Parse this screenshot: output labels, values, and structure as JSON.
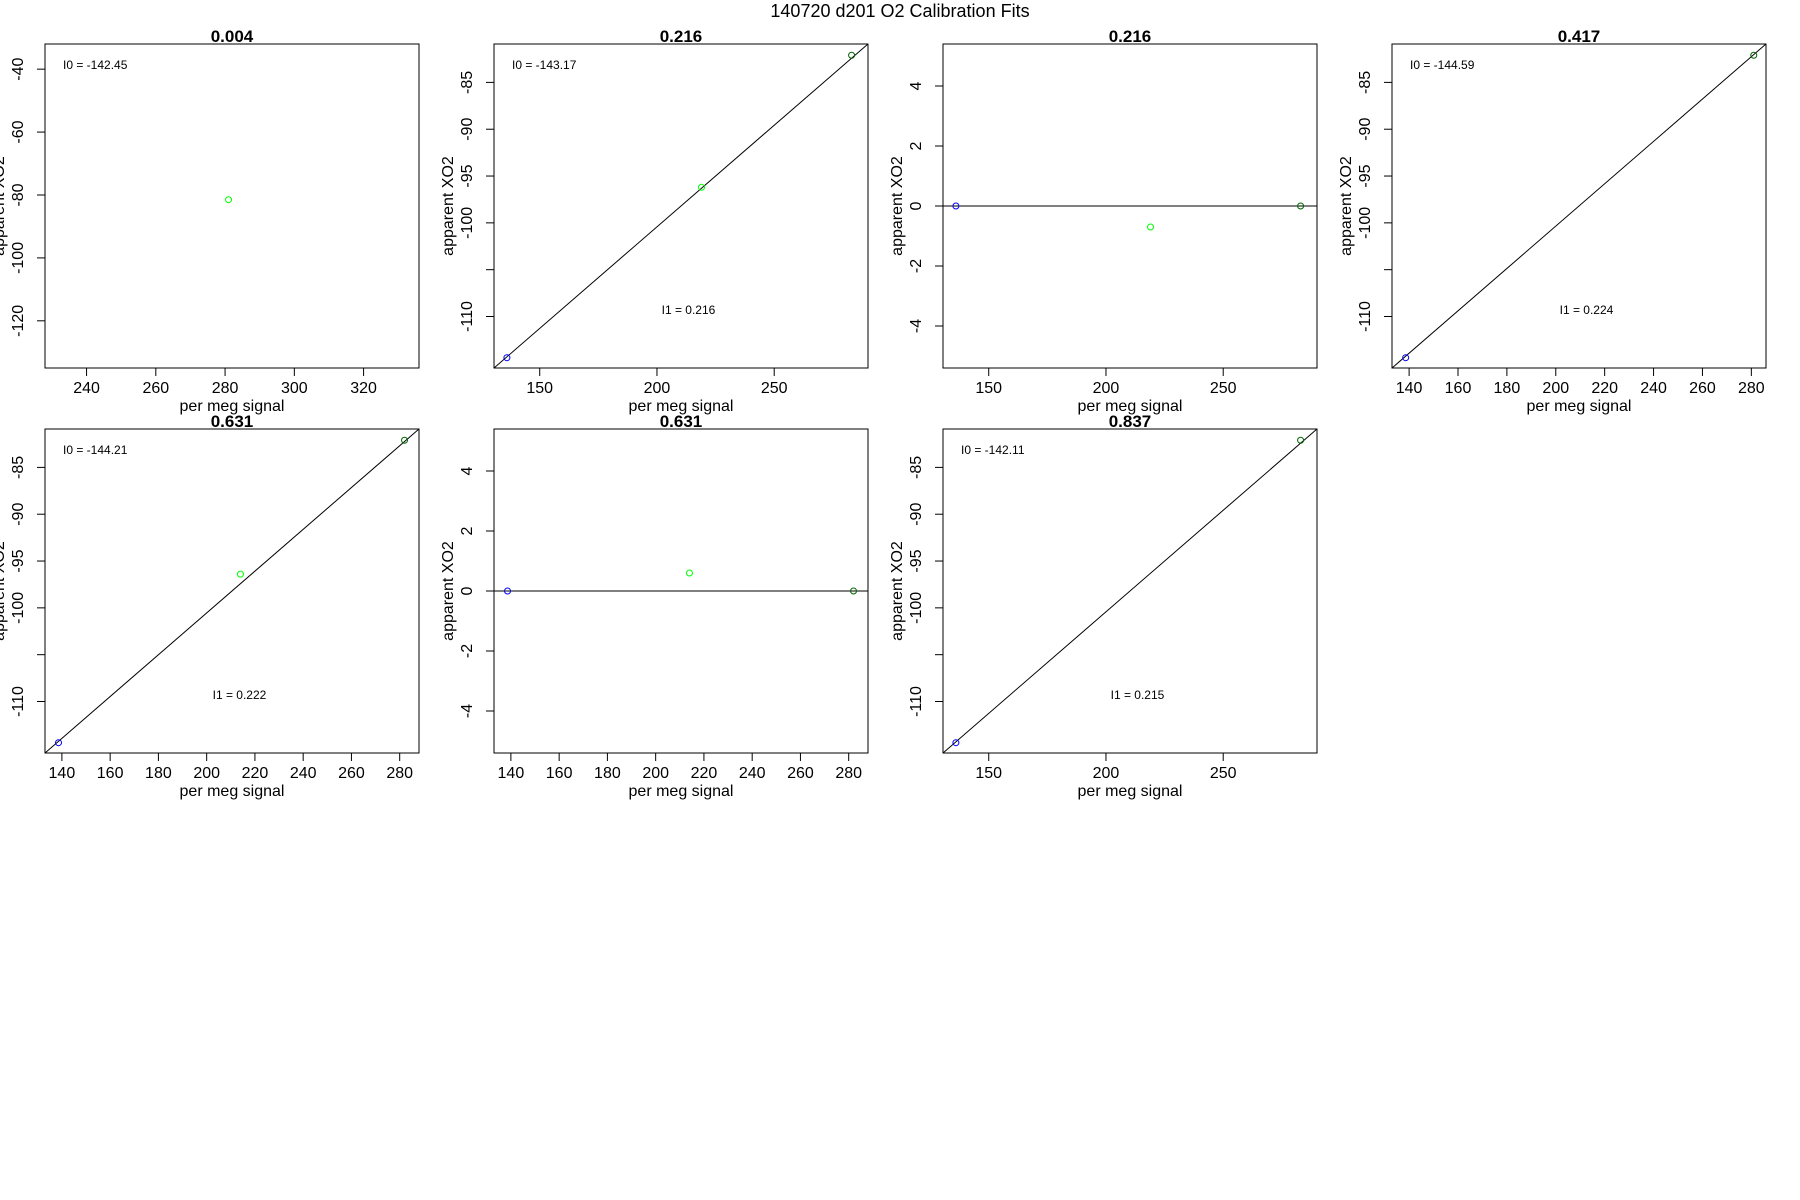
{
  "page": {
    "title": "140720   d201   O2 Calibration Fits"
  },
  "colors": {
    "axis": "#000000",
    "fit_line": "#000000",
    "point_blue": "#0000ff",
    "point_green": "#00ff00",
    "point_darkgreen": "#006400"
  },
  "chart_data": [
    {
      "type": "scatter",
      "title": "0.004",
      "xlabel": "per meg signal",
      "ylabel": "apparent XO2",
      "xlim": [
        228,
        336
      ],
      "ylim": [
        -135,
        -32
      ],
      "xticks": [
        240,
        260,
        280,
        300,
        320
      ],
      "yticks": [
        -40,
        -60,
        -80,
        -100,
        -120
      ],
      "annotations": [
        {
          "text": "I0 =  -142.45",
          "pos": "top-left"
        }
      ],
      "points": [
        {
          "x": 281,
          "y": -81.5,
          "color": "green"
        }
      ],
      "fit_line": null
    },
    {
      "type": "scatter",
      "title": "0.216",
      "xlabel": "per meg signal",
      "ylabel": "apparent XO2",
      "xlim": [
        130.5,
        290
      ],
      "ylim": [
        -115.5,
        -80.9
      ],
      "xticks": [
        150,
        200,
        250
      ],
      "yticks": [
        -85,
        -90,
        -95,
        -100,
        -105,
        -110
      ],
      "ytick_labels": [
        "-85",
        "-90",
        "-95",
        "-100",
        "",
        "-110"
      ],
      "annotations": [
        {
          "text": "I0 =  -143.17",
          "pos": "top-left"
        },
        {
          "text": "I1 =  0.216",
          "pos": "lower-middle"
        }
      ],
      "points": [
        {
          "x": 136,
          "y": -114.4,
          "color": "blue"
        },
        {
          "x": 219,
          "y": -96.2,
          "color": "green"
        },
        {
          "x": 283,
          "y": -82.1,
          "color": "darkgreen"
        }
      ],
      "fit_line": {
        "x1": 130.5,
        "y1": -115.5,
        "x2": 290,
        "y2": -80.9
      }
    },
    {
      "type": "scatter",
      "title": "0.216",
      "xlabel": "per meg signal",
      "ylabel": "apparent XO2",
      "xlim": [
        130.5,
        290
      ],
      "ylim": [
        -5.4,
        5.4
      ],
      "xticks": [
        150,
        200,
        250
      ],
      "yticks": [
        4,
        2,
        0,
        -2,
        -4
      ],
      "annotations": [],
      "points": [
        {
          "x": 136,
          "y": 0,
          "color": "blue"
        },
        {
          "x": 219,
          "y": -0.7,
          "color": "green"
        },
        {
          "x": 283,
          "y": 0,
          "color": "darkgreen"
        }
      ],
      "fit_line": {
        "x1": 130.5,
        "y1": 0,
        "x2": 290,
        "y2": 0
      }
    },
    {
      "type": "scatter",
      "title": "0.417",
      "xlabel": "per meg signal",
      "ylabel": "apparent XO2",
      "xlim": [
        133,
        286
      ],
      "ylim": [
        -115.5,
        -80.9
      ],
      "xticks": [
        140,
        160,
        180,
        200,
        220,
        240,
        260,
        280
      ],
      "yticks": [
        -85,
        -90,
        -95,
        -100,
        -105,
        -110
      ],
      "ytick_labels": [
        "-85",
        "-90",
        "-95",
        "-100",
        "",
        "-110"
      ],
      "annotations": [
        {
          "text": "I0 =  -144.59",
          "pos": "top-left"
        },
        {
          "text": "I1 =  0.224",
          "pos": "lower-middle"
        }
      ],
      "points": [
        {
          "x": 138.6,
          "y": -114.4,
          "color": "blue"
        },
        {
          "x": 281,
          "y": -82.1,
          "color": "darkgreen"
        }
      ],
      "fit_line": {
        "x1": 133,
        "y1": -115.5,
        "x2": 286,
        "y2": -80.9
      }
    },
    {
      "type": "scatter",
      "title": "0.631",
      "xlabel": "per meg signal",
      "ylabel": "apparent XO2",
      "xlim": [
        133,
        288
      ],
      "ylim": [
        -115.5,
        -80.9
      ],
      "xticks": [
        140,
        160,
        180,
        200,
        220,
        240,
        260,
        280
      ],
      "yticks": [
        -85,
        -90,
        -95,
        -100,
        -105,
        -110
      ],
      "ytick_labels": [
        "-85",
        "-90",
        "-95",
        "-100",
        "",
        "-110"
      ],
      "annotations": [
        {
          "text": "I0 =  -144.21",
          "pos": "top-left"
        },
        {
          "text": "I1 =  0.222",
          "pos": "lower-middle"
        }
      ],
      "points": [
        {
          "x": 138.6,
          "y": -114.4,
          "color": "blue"
        },
        {
          "x": 214,
          "y": -96.4,
          "color": "green"
        },
        {
          "x": 282,
          "y": -82.1,
          "color": "darkgreen"
        }
      ],
      "fit_line": {
        "x1": 133,
        "y1": -115.5,
        "x2": 288,
        "y2": -80.9
      }
    },
    {
      "type": "scatter",
      "title": "0.631",
      "xlabel": "per meg signal",
      "ylabel": "apparent XO2",
      "xlim": [
        133,
        288
      ],
      "ylim": [
        -5.4,
        5.4
      ],
      "xticks": [
        140,
        160,
        180,
        200,
        220,
        240,
        260,
        280
      ],
      "yticks": [
        4,
        2,
        0,
        -2,
        -4
      ],
      "annotations": [],
      "points": [
        {
          "x": 138.6,
          "y": 0,
          "color": "blue"
        },
        {
          "x": 214,
          "y": 0.6,
          "color": "green"
        },
        {
          "x": 282,
          "y": 0,
          "color": "darkgreen"
        }
      ],
      "fit_line": {
        "x1": 133,
        "y1": 0,
        "x2": 288,
        "y2": 0
      }
    },
    {
      "type": "scatter",
      "title": "0.837",
      "xlabel": "per meg signal",
      "ylabel": "apparent XO2",
      "xlim": [
        130.5,
        290
      ],
      "ylim": [
        -115.5,
        -80.9
      ],
      "xticks": [
        150,
        200,
        250
      ],
      "yticks": [
        -85,
        -90,
        -95,
        -100,
        -105,
        -110
      ],
      "ytick_labels": [
        "-85",
        "-90",
        "-95",
        "-100",
        "",
        "-110"
      ],
      "annotations": [
        {
          "text": "I0 =  -142.11",
          "pos": "top-left"
        },
        {
          "text": "I1 =  0.215",
          "pos": "lower-middle"
        }
      ],
      "points": [
        {
          "x": 136,
          "y": -114.4,
          "color": "blue"
        },
        {
          "x": 283,
          "y": -82.1,
          "color": "darkgreen"
        }
      ],
      "fit_line": {
        "x1": 130.5,
        "y1": -115.5,
        "x2": 290,
        "y2": -80.9
      }
    }
  ]
}
